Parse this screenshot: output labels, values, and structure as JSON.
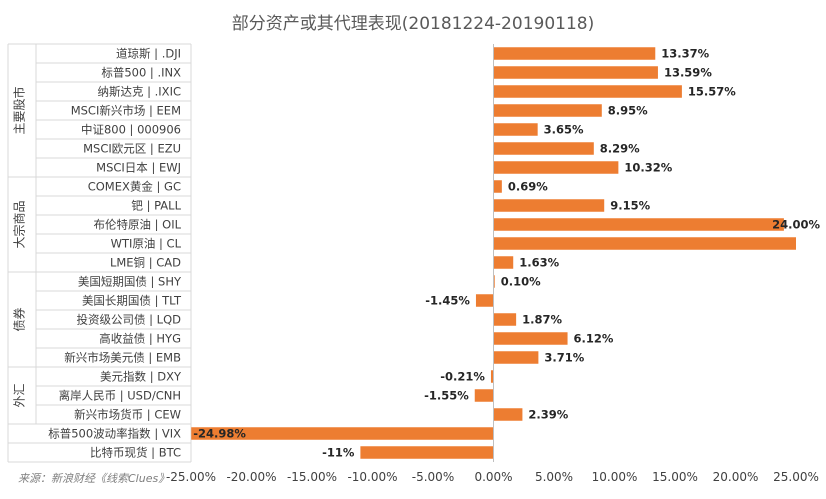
{
  "chart_data": {
    "type": "bar",
    "orientation": "horizontal",
    "title": "部分资产或其代理表现(20181224-20190118)",
    "groups": [
      {
        "name": "主要股市",
        "items": [
          {
            "label": "道琼斯 | .DJI",
            "value": 13.37,
            "value_label": "13.37%"
          },
          {
            "label": "标普500 | .INX",
            "value": 13.59,
            "value_label": "13.59%"
          },
          {
            "label": "纳斯达克 | .IXIC",
            "value": 15.57,
            "value_label": "15.57%"
          },
          {
            "label": "MSCI新兴市场 | EEM",
            "value": 8.95,
            "value_label": "8.95%"
          },
          {
            "label": "中证800 | 000906",
            "value": 3.65,
            "value_label": "3.65%"
          },
          {
            "label": "MSCI欧元区 | EZU",
            "value": 8.29,
            "value_label": "8.29%"
          },
          {
            "label": "MSCI日本 | EWJ",
            "value": 10.32,
            "value_label": "10.32%"
          }
        ]
      },
      {
        "name": "大宗商品",
        "items": [
          {
            "label": "COMEX黄金 | GC",
            "value": 0.69,
            "value_label": "0.69%"
          },
          {
            "label": "钯 | PALL",
            "value": 9.15,
            "value_label": "9.15%"
          },
          {
            "label": "布伦特原油 | OIL",
            "value": 24.0,
            "value_label": "24.00%"
          },
          {
            "label": "WTI原油 | CL",
            "value": 25.1,
            "value_label": ""
          },
          {
            "label": "LME铜 | CAD",
            "value": 1.63,
            "value_label": "1.63%"
          }
        ]
      },
      {
        "name": "债券",
        "items": [
          {
            "label": "美国短期国债 | SHY",
            "value": 0.1,
            "value_label": "0.10%"
          },
          {
            "label": "美国长期国债 | TLT",
            "value": -1.45,
            "value_label": "-1.45%"
          },
          {
            "label": "投资级公司债 | LQD",
            "value": 1.87,
            "value_label": "1.87%"
          },
          {
            "label": "高收益债 | HYG",
            "value": 6.12,
            "value_label": "6.12%"
          },
          {
            "label": "新兴市场美元债 | EMB",
            "value": 3.71,
            "value_label": "3.71%"
          }
        ]
      },
      {
        "name": "外汇",
        "items": [
          {
            "label": "美元指数 | DXY",
            "value": -0.21,
            "value_label": "-0.21%"
          },
          {
            "label": "离岸人民币 | USD/CNH",
            "value": -1.55,
            "value_label": "-1.55%"
          },
          {
            "label": "新兴市场货币 | CEW",
            "value": 2.39,
            "value_label": "2.39%"
          }
        ]
      },
      {
        "name": "",
        "items": [
          {
            "label": "标普500波动率指数 | VIX",
            "value": -24.98,
            "value_label": "-24.98%"
          }
        ]
      },
      {
        "name": "",
        "items": [
          {
            "label": "比特币现货 | BTC",
            "value": -11,
            "value_label": "-11%"
          }
        ]
      }
    ],
    "x_ticks": [
      -25,
      -20,
      -15,
      -10,
      -5,
      0,
      5,
      10,
      15,
      20,
      25
    ],
    "x_tick_labels": [
      "-25.00%",
      "-20.00%",
      "-15.00%",
      "-10.00%",
      "-5.00%",
      "0.00%",
      "5.00%",
      "10.00%",
      "15.00%",
      "20.00%",
      "25.00%"
    ],
    "xlim": [
      -25,
      25
    ],
    "bar_color": "#ED7D31",
    "grid": false,
    "source": "来源：新浪财经《线索Clues》"
  }
}
